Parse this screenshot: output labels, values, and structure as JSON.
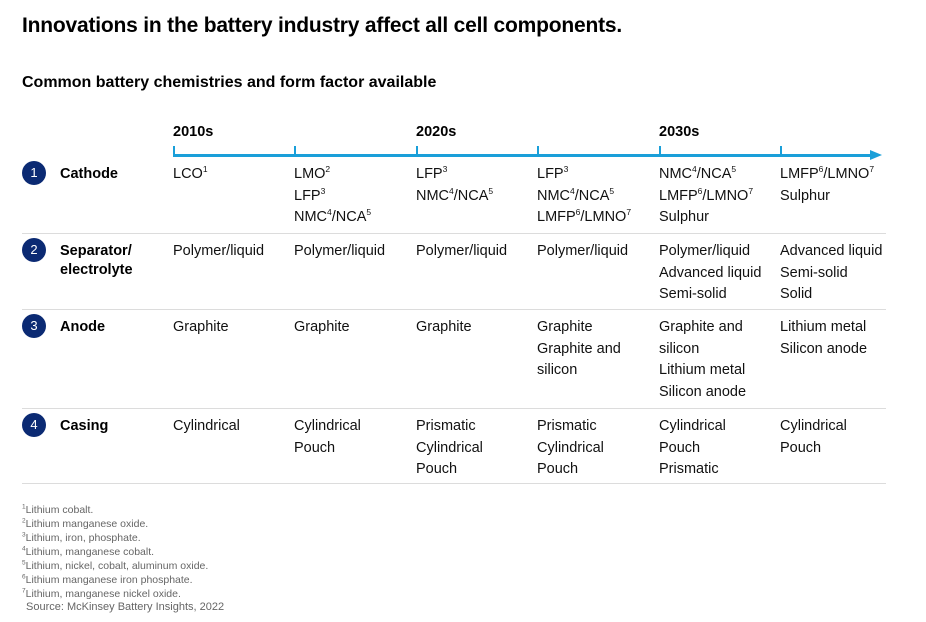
{
  "title": "Innovations in the battery industry affect all cell components.",
  "subtitle": "Common battery chemistries and form factor available",
  "decades": [
    "2010s",
    "2020s",
    "2030s"
  ],
  "rows": [
    {
      "number": "1",
      "label": "Cathode",
      "cells": [
        [
          [
            [
              "LCO",
              "1"
            ]
          ]
        ],
        [
          [
            [
              "LMO",
              "2"
            ]
          ],
          [
            [
              "LFP",
              "3"
            ]
          ],
          [
            [
              "NMC",
              "4"
            ],
            [
              "/NCA",
              "5"
            ]
          ]
        ],
        [
          [
            [
              "LFP",
              "3"
            ]
          ],
          [
            [
              "NMC",
              "4"
            ],
            [
              "/NCA",
              "5"
            ]
          ]
        ],
        [
          [
            [
              "LFP",
              "3"
            ]
          ],
          [
            [
              "NMC",
              "4"
            ],
            [
              "/NCA",
              "5"
            ]
          ],
          [
            [
              "LMFP",
              "6"
            ],
            [
              "/LMNO",
              "7"
            ]
          ]
        ],
        [
          [
            [
              "NMC",
              "4"
            ],
            [
              "/NCA",
              "5"
            ]
          ],
          [
            [
              "LMFP",
              "6"
            ],
            [
              "/LMNO",
              "7"
            ]
          ],
          [
            [
              "Sulphur",
              ""
            ]
          ]
        ],
        [
          [
            [
              "LMFP",
              "6"
            ],
            [
              "/LMNO",
              "7"
            ]
          ],
          [
            [
              "Sulphur",
              ""
            ]
          ]
        ]
      ]
    },
    {
      "number": "2",
      "label": "Separator/ electrolyte",
      "cells": [
        [
          [
            [
              "Polymer/liquid",
              ""
            ]
          ]
        ],
        [
          [
            [
              "Polymer/liquid",
              ""
            ]
          ]
        ],
        [
          [
            [
              "Polymer/liquid",
              ""
            ]
          ]
        ],
        [
          [
            [
              "Polymer/liquid",
              ""
            ]
          ]
        ],
        [
          [
            [
              "Polymer/liquid",
              ""
            ]
          ],
          [
            [
              "Advanced liquid",
              ""
            ]
          ],
          [
            [
              "Semi-solid",
              ""
            ]
          ]
        ],
        [
          [
            [
              "Advanced liquid",
              ""
            ]
          ],
          [
            [
              "Semi-solid",
              ""
            ]
          ],
          [
            [
              "Solid",
              ""
            ]
          ]
        ]
      ]
    },
    {
      "number": "3",
      "label": "Anode",
      "cells": [
        [
          [
            [
              "Graphite",
              ""
            ]
          ]
        ],
        [
          [
            [
              "Graphite",
              ""
            ]
          ]
        ],
        [
          [
            [
              "Graphite",
              ""
            ]
          ]
        ],
        [
          [
            [
              "Graphite",
              ""
            ]
          ],
          [
            [
              "Graphite and",
              ""
            ]
          ],
          [
            [
              "silicon",
              ""
            ]
          ]
        ],
        [
          [
            [
              "Graphite and",
              ""
            ]
          ],
          [
            [
              "silicon",
              ""
            ]
          ],
          [
            [
              "Lithium metal",
              ""
            ]
          ],
          [
            [
              "Silicon anode",
              ""
            ]
          ]
        ],
        [
          [
            [
              "Lithium metal",
              ""
            ]
          ],
          [
            [
              "Silicon anode",
              ""
            ]
          ]
        ]
      ]
    },
    {
      "number": "4",
      "label": "Casing",
      "cells": [
        [
          [
            [
              "Cylindrical",
              ""
            ]
          ]
        ],
        [
          [
            [
              "Cylindrical",
              ""
            ]
          ],
          [
            [
              "Pouch",
              ""
            ]
          ]
        ],
        [
          [
            [
              "Prismatic",
              ""
            ]
          ],
          [
            [
              "Cylindrical",
              ""
            ]
          ],
          [
            [
              "Pouch",
              ""
            ]
          ]
        ],
        [
          [
            [
              "Prismatic",
              ""
            ]
          ],
          [
            [
              "Cylindrical",
              ""
            ]
          ],
          [
            [
              "Pouch",
              ""
            ]
          ]
        ],
        [
          [
            [
              "Cylindrical",
              ""
            ]
          ],
          [
            [
              "Pouch",
              ""
            ]
          ],
          [
            [
              "Prismatic",
              ""
            ]
          ]
        ],
        [
          [
            [
              "Cylindrical",
              ""
            ]
          ],
          [
            [
              "Pouch",
              ""
            ]
          ]
        ]
      ]
    }
  ],
  "footnotes": [
    {
      "mark": "1",
      "text": "Lithium cobalt."
    },
    {
      "mark": "2",
      "text": "Lithium manganese oxide."
    },
    {
      "mark": "3",
      "text": "Lithium, iron, phosphate."
    },
    {
      "mark": "4",
      "text": "Lithium, manganese cobalt."
    },
    {
      "mark": "5",
      "text": "Lithium, nickel, cobalt, aluminum oxide."
    },
    {
      "mark": "6",
      "text": "Lithium manganese iron phosphate."
    },
    {
      "mark": "7",
      "text": "Lithium, manganese nickel oxide."
    }
  ],
  "source": "Source: McKinsey Battery Insights, 2022",
  "colors": {
    "timeline": "#1a9fd9",
    "badge": "#0b2a73",
    "separator": "#dcdcdc"
  }
}
